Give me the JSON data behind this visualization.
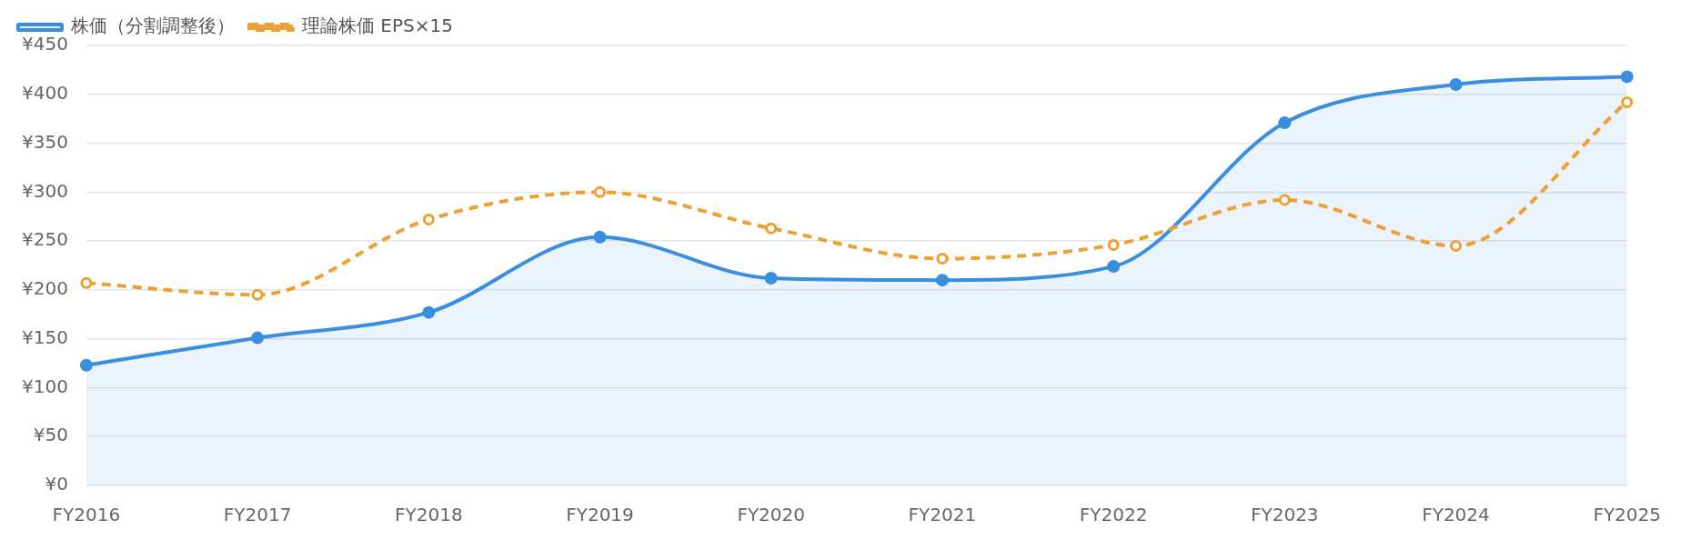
{
  "chart_data": {
    "type": "line",
    "categories": [
      "FY2016",
      "FY2017",
      "FY2018",
      "FY2019",
      "FY2020",
      "FY2021",
      "FY2022",
      "FY2023",
      "FY2024",
      "FY2025"
    ],
    "series": [
      {
        "name": "株価（分割調整後）",
        "type": "area",
        "color": "#3a8ee0",
        "values": [
          123,
          151,
          177,
          254,
          212,
          210,
          224,
          371,
          410,
          418
        ]
      },
      {
        "name": "理論株価 EPS×15",
        "type": "line",
        "line_style": "dashed",
        "color": "#eea033",
        "values": [
          207,
          195,
          272,
          300,
          263,
          232,
          246,
          292,
          245,
          392
        ]
      }
    ],
    "ylim": [
      0,
      450
    ],
    "yticks": [
      {
        "value": 0,
        "label": "¥0"
      },
      {
        "value": 50,
        "label": "¥50"
      },
      {
        "value": 100,
        "label": "¥100"
      },
      {
        "value": 150,
        "label": "¥150"
      },
      {
        "value": 200,
        "label": "¥200"
      },
      {
        "value": 250,
        "label": "¥250"
      },
      {
        "value": 300,
        "label": "¥300"
      },
      {
        "value": 350,
        "label": "¥350"
      },
      {
        "value": 400,
        "label": "¥400"
      },
      {
        "value": 450,
        "label": "¥450"
      }
    ],
    "grid": "y",
    "legend": "top left",
    "marker": "circle"
  }
}
